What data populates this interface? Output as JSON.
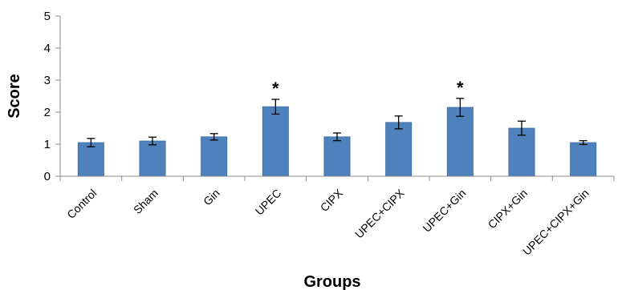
{
  "chart_data": {
    "type": "bar",
    "categories": [
      "Control",
      "Sham",
      "Gin",
      "UPEC",
      "CIPX",
      "UPEC+CIPX",
      "UPEC+Gin",
      "CIPX+Gin",
      "UPEC+CIPX+Gin"
    ],
    "values": [
      1.05,
      1.1,
      1.23,
      2.17,
      1.23,
      1.68,
      2.15,
      1.5,
      1.05
    ],
    "errors": [
      0.13,
      0.12,
      0.1,
      0.23,
      0.12,
      0.2,
      0.28,
      0.22,
      0.06
    ],
    "annotations": [
      "",
      "",
      "",
      "*",
      "",
      "",
      "*",
      "",
      ""
    ],
    "xlabel": "Groups",
    "ylabel": "Score",
    "ylim": [
      0,
      5
    ],
    "yticks": [
      0,
      1,
      2,
      3,
      4,
      5
    ],
    "bar_color": "#4f81bd",
    "bar_edge_color": "#3a6aa3",
    "grid": false,
    "legend": "none"
  }
}
